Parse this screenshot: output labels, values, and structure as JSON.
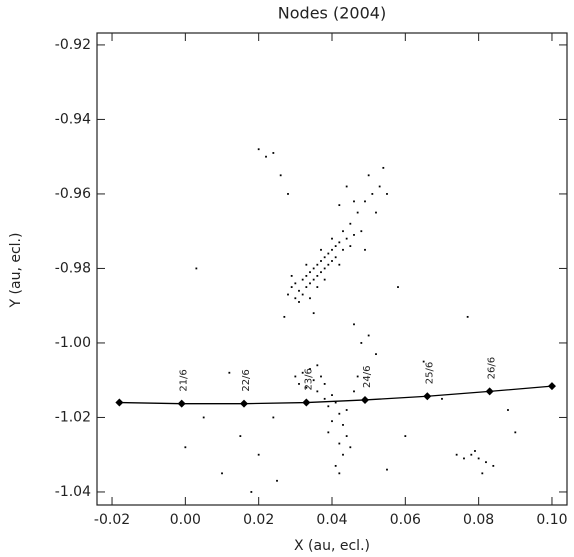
{
  "chart_data": {
    "type": "scatter",
    "title": "Nodes (2004)",
    "x_label": "X (au, ecl.)",
    "y_label": "Y (au, ecl.)",
    "color": "#000000",
    "x": [
      0.028,
      0.029,
      0.03,
      0.03,
      0.031,
      0.032,
      0.032,
      0.033,
      0.033,
      0.034,
      0.034,
      0.035,
      0.035,
      0.036,
      0.036,
      0.037,
      0.037,
      0.038,
      0.038,
      0.039,
      0.039,
      0.04,
      0.04,
      0.041,
      0.041,
      0.042,
      0.043,
      0.044,
      0.045,
      0.046,
      0.036,
      0.034,
      0.038,
      0.031,
      0.04,
      0.043,
      0.033,
      0.029,
      0.042,
      0.037,
      0.045,
      0.047,
      0.049,
      0.051,
      0.053,
      0.05,
      0.054,
      0.048,
      0.046,
      0.052,
      0.044,
      0.042,
      0.055,
      0.049,
      0.046,
      0.048,
      0.05,
      0.027,
      0.035,
      0.052,
      0.032,
      0.034,
      0.035,
      0.037,
      0.033,
      0.036,
      0.038,
      0.04,
      0.039,
      0.041,
      0.042,
      0.043,
      0.04,
      0.044,
      0.042,
      0.043,
      0.045,
      0.041,
      0.044,
      0.036,
      0.031,
      0.038,
      0.046,
      0.047,
      0.039,
      0.042,
      0.03,
      0.02,
      0.022,
      0.024,
      0.026,
      0.028,
      0.074,
      0.076,
      0.078,
      0.08,
      0.082,
      0.084,
      0.079,
      0.081,
      0.003,
      0.005,
      0.01,
      0.015,
      0.02,
      0.025,
      0.012,
      0.06,
      0.065,
      0.055,
      0.07,
      0.088,
      0.077,
      0.0,
      0.018,
      0.058,
      0.024,
      0.09
    ],
    "y": [
      -0.987,
      -0.985,
      -0.988,
      -0.984,
      -0.986,
      -0.983,
      -0.987,
      -0.982,
      -0.985,
      -0.981,
      -0.984,
      -0.98,
      -0.983,
      -0.979,
      -0.982,
      -0.978,
      -0.981,
      -0.977,
      -0.98,
      -0.976,
      -0.979,
      -0.975,
      -0.978,
      -0.974,
      -0.977,
      -0.973,
      -0.975,
      -0.972,
      -0.974,
      -0.971,
      -0.985,
      -0.988,
      -0.983,
      -0.989,
      -0.972,
      -0.97,
      -0.979,
      -0.982,
      -0.979,
      -0.975,
      -0.968,
      -0.965,
      -0.962,
      -0.96,
      -0.958,
      -0.955,
      -0.953,
      -0.97,
      -0.962,
      -0.965,
      -0.958,
      -0.963,
      -0.96,
      -0.975,
      -0.995,
      -1.0,
      -0.998,
      -0.993,
      -0.992,
      -1.003,
      -1.008,
      -1.007,
      -1.01,
      -1.009,
      -1.012,
      -1.013,
      -1.011,
      -1.014,
      -1.017,
      -1.016,
      -1.019,
      -1.022,
      -1.021,
      -1.025,
      -1.027,
      -1.03,
      -1.028,
      -1.033,
      -1.018,
      -1.006,
      -1.011,
      -1.015,
      -1.013,
      -1.009,
      -1.024,
      -1.035,
      -1.009,
      -0.948,
      -0.95,
      -0.949,
      -0.955,
      -0.96,
      -1.03,
      -1.031,
      -1.03,
      -1.031,
      -1.032,
      -1.033,
      -1.029,
      -1.035,
      -0.98,
      -1.02,
      -1.035,
      -1.025,
      -1.03,
      -1.037,
      -1.008,
      -1.025,
      -1.005,
      -1.034,
      -1.015,
      -1.018,
      -0.993,
      -1.028,
      -1.04,
      -0.985,
      -1.02,
      -1.024
    ],
    "orbit": {
      "x": [
        -0.018,
        -0.001,
        0.016,
        0.033,
        0.049,
        0.066,
        0.083,
        0.1
      ],
      "y": [
        -1.016,
        -1.0163,
        -1.0163,
        -1.016,
        -1.0153,
        -1.0143,
        -1.013,
        -1.0116
      ],
      "date_labels": [
        null,
        "21/6",
        "22/6",
        "23/6",
        "24/6",
        "25/6",
        "26/6",
        null
      ]
    },
    "xlim": [
      -0.0241,
      0.1041
    ],
    "ylim": [
      -1.0435,
      -0.9168
    ],
    "xticks": [
      -0.02,
      {
        "value": 0,
        "label": "0.00"
      },
      0.02,
      0.04,
      0.06,
      0.08,
      {
        "value": 0.1,
        "label": "0.10"
      }
    ],
    "yticks": [
      -0.92,
      -0.94,
      -0.96,
      -0.98,
      {
        "value": -1,
        "label": "-1.00"
      },
      -1.02,
      -1.04
    ]
  }
}
